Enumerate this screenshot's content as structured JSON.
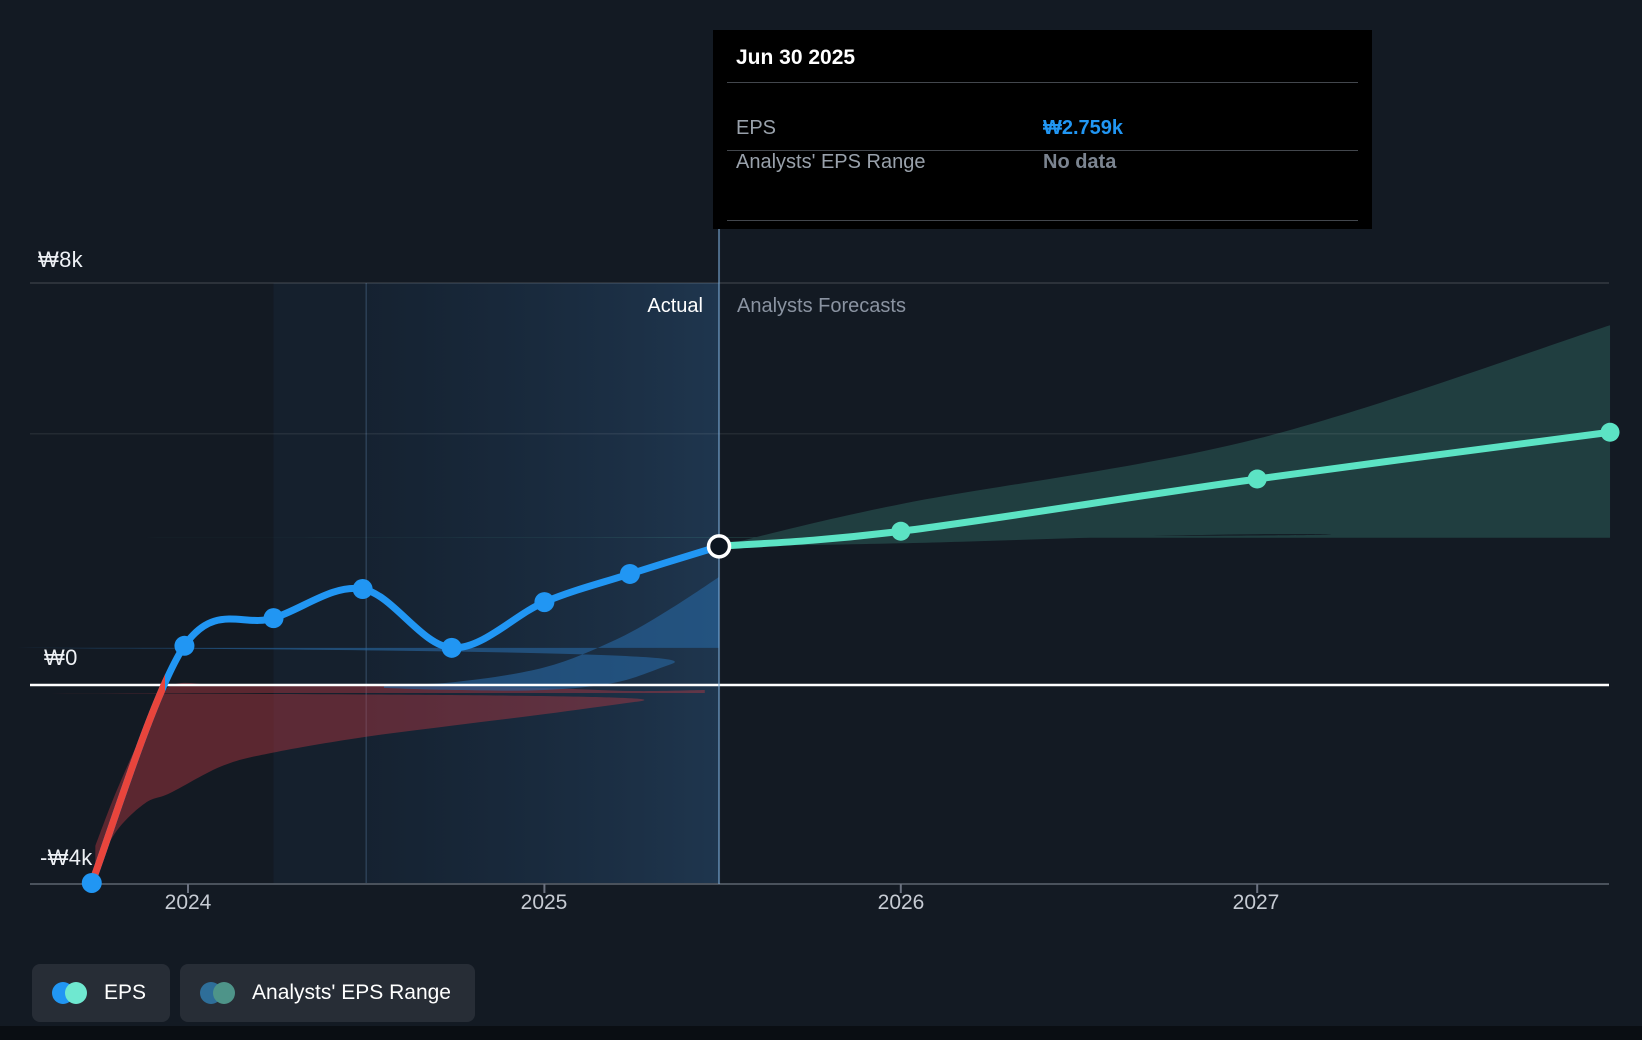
{
  "tooltip": {
    "title": "Jun 30 2025",
    "rows": [
      {
        "label": "EPS",
        "value": "₩2.759k",
        "value_color": "#2196f3"
      },
      {
        "label": "Analysts' EPS Range",
        "value": "No data",
        "value_color": "#7b8490"
      }
    ]
  },
  "regions": {
    "actual_label": "Actual",
    "forecast_label": "Analysts Forecasts"
  },
  "axis": {
    "x_labels": [
      "2024",
      "2025",
      "2026",
      "2027"
    ],
    "y_labels": [
      "₩8k",
      "₩0",
      "-₩4k"
    ]
  },
  "legend": [
    {
      "label": "EPS",
      "dot_colors": [
        "#2196f3",
        "#6fe8d0"
      ]
    },
    {
      "label": "Analysts' EPS Range",
      "dot_colors": [
        "#2e6e99",
        "#4e9489"
      ]
    }
  ],
  "colors": {
    "background": "#131a23",
    "actual_line": "#2196f3",
    "loss_line": "#e8453c",
    "forecast_line": "#5ce3c4",
    "forecast_band": "rgba(84,200,176,0.21)",
    "past_negative_band": "rgba(190,58,66,0.42)",
    "past_positive_band": "rgba(38,98,152,0.68)",
    "zero_line": "#ffffff",
    "axis_line": "#4a525c",
    "tick": "#6b7280",
    "gridline_strong": "rgba(255,255,255,0.14)",
    "gridline_faint": "rgba(255,255,255,0.07)",
    "divider": "rgba(125,175,220,0.55)",
    "highlight_soft": "rgba(36,84,134,0.10)",
    "highlight_from": "rgba(33,76,122,0.16)",
    "highlight_to": "rgba(58,118,178,0.30)",
    "highlight_border": "rgba(140,190,240,0.20)"
  },
  "chart_data": {
    "type": "line",
    "title": "EPS actual vs analysts forecasts",
    "x_unit": "year",
    "y_unit": "KRW thousands (₩k)",
    "ylim": [
      -4,
      8
    ],
    "xlim": [
      2023.6,
      2028.0
    ],
    "gridline_values": [
      8,
      5,
      0,
      -4
    ],
    "y_label_values": [
      8,
      0,
      -4
    ],
    "x_tick_years": [
      2024,
      2025,
      2026,
      2027
    ],
    "highlight_period": {
      "from": 2024.5,
      "to": 2025.49
    },
    "divider_x": 2025.49,
    "series": [
      {
        "name": "EPS (actual)",
        "points": [
          {
            "x": 2023.73,
            "y": -3.94
          },
          {
            "x": 2023.99,
            "y": 0.78
          },
          {
            "x": 2024.24,
            "y": 1.33
          },
          {
            "x": 2024.49,
            "y": 1.91
          },
          {
            "x": 2024.74,
            "y": 0.74
          },
          {
            "x": 2025.0,
            "y": 1.65
          },
          {
            "x": 2025.24,
            "y": 2.21
          },
          {
            "x": 2025.49,
            "y": 2.759
          }
        ]
      },
      {
        "name": "EPS (analysts forecast)",
        "points": [
          {
            "x": 2025.49,
            "y": 2.759
          },
          {
            "x": 2026.0,
            "y": 3.06
          },
          {
            "x": 2027.0,
            "y": 4.1
          },
          {
            "x": 2027.99,
            "y": 5.03
          }
        ]
      }
    ],
    "forecast_range": [
      {
        "x": 2025.49,
        "lo": 2.759,
        "hi": 2.759
      },
      {
        "x": 2026.0,
        "lo": 2.82,
        "hi": 3.6
      },
      {
        "x": 2027.0,
        "lo": 3.0,
        "hi": 4.9
      },
      {
        "x": 2027.99,
        "lo": 2.93,
        "hi": 7.16
      }
    ],
    "past_range_negative": [
      {
        "x": 2023.74,
        "lo": -3.7,
        "hi": -3.2
      },
      {
        "x": 2023.8,
        "lo": -2.9,
        "hi": -2.1
      },
      {
        "x": 2023.88,
        "lo": -2.35,
        "hi": -0.85
      },
      {
        "x": 2023.95,
        "lo": -2.15,
        "hi": -0.02
      },
      {
        "x": 2024.1,
        "lo": -1.6,
        "hi": -0.02
      },
      {
        "x": 2024.25,
        "lo": -1.33,
        "hi": -0.02
      },
      {
        "x": 2024.5,
        "lo": -1.03,
        "hi": -0.02
      },
      {
        "x": 2024.75,
        "lo": -0.8,
        "hi": -0.03
      },
      {
        "x": 2025.0,
        "lo": -0.58,
        "hi": -0.06
      },
      {
        "x": 2025.25,
        "lo": -0.34,
        "hi": -0.12
      },
      {
        "x": 2025.45,
        "lo": -0.16,
        "hi": -0.1
      }
    ],
    "past_range_positive": [
      {
        "x": 2024.55,
        "lo": -0.06,
        "hi": 0.0
      },
      {
        "x": 2024.75,
        "lo": -0.1,
        "hi": 0.06
      },
      {
        "x": 2025.0,
        "lo": -0.1,
        "hi": 0.35
      },
      {
        "x": 2025.2,
        "lo": 0.05,
        "hi": 0.9
      },
      {
        "x": 2025.35,
        "lo": 0.4,
        "hi": 1.5
      },
      {
        "x": 2025.49,
        "lo": 0.74,
        "hi": 2.15
      }
    ]
  }
}
